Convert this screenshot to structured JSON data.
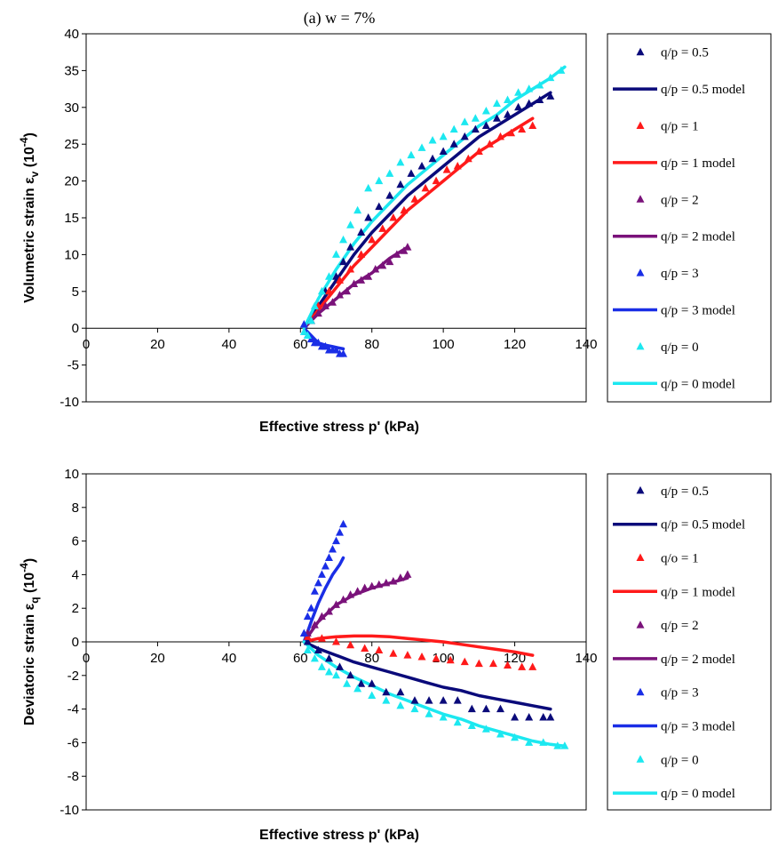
{
  "figure_title": "(a) w = 7%",
  "colors": {
    "navy": "#0a0a7a",
    "red": "#ff1a1a",
    "purple": "#7a127a",
    "blue": "#1a2ee6",
    "cyan": "#1ce8f0"
  },
  "chart_data": [
    {
      "type": "scatter",
      "xlabel": "Effective stress p' (kPa)",
      "ylabel": "Volumetric strain",
      "ylabel_symbol": "ε",
      "ylabel_sub": "v",
      "ylabel_unit_pre": " (10",
      "ylabel_unit_exp": "-4",
      "ylabel_unit_post": ")",
      "xlim": [
        0,
        140
      ],
      "ylim": [
        -10,
        40
      ],
      "xticks": [
        0,
        20,
        40,
        60,
        80,
        100,
        120,
        140
      ],
      "yticks": [
        -10,
        -5,
        0,
        5,
        10,
        15,
        20,
        25,
        30,
        35,
        40
      ],
      "legend_position": "right",
      "legend": [
        "q/p = 0.5",
        "q/p = 0.5 model",
        "q/p = 1",
        "q/p = 1 model",
        "q/p = 2",
        "q/p = 2 model",
        "q/p = 3",
        "q/p = 3 model",
        "q/p = 0",
        "q/p = 0 model"
      ],
      "series": [
        {
          "name": "q/p = 0.5",
          "kind": "marker",
          "color": "navy",
          "x": [
            63,
            65,
            67,
            70,
            72,
            74,
            77,
            79,
            82,
            85,
            88,
            91,
            94,
            97,
            100,
            103,
            106,
            109,
            112,
            115,
            118,
            121,
            124,
            127,
            130
          ],
          "y": [
            1,
            3,
            5,
            7,
            9,
            11,
            13,
            15,
            16.5,
            18,
            19.5,
            21,
            22,
            23,
            24,
            25,
            26,
            27,
            27.5,
            28.5,
            29,
            30,
            30.5,
            31,
            31.5
          ]
        },
        {
          "name": "q/p = 0.5 model",
          "kind": "line",
          "color": "navy",
          "x": [
            61,
            65,
            70,
            75,
            80,
            85,
            90,
            95,
            100,
            105,
            110,
            115,
            120,
            125,
            130
          ],
          "y": [
            0,
            3,
            6.5,
            10,
            13,
            15.5,
            18,
            20,
            22,
            24,
            26,
            27.5,
            29,
            30.5,
            32
          ]
        },
        {
          "name": "q/p = 1",
          "kind": "marker",
          "color": "red",
          "x": [
            63,
            65,
            68,
            71,
            74,
            77,
            80,
            83,
            86,
            89,
            92,
            95,
            98,
            101,
            104,
            107,
            110,
            113,
            116,
            119,
            122,
            125
          ],
          "y": [
            1,
            3,
            5,
            6.5,
            8,
            10,
            12,
            13.5,
            15,
            16,
            17.5,
            19,
            20,
            21.5,
            22,
            23,
            24,
            25,
            26,
            26.5,
            27,
            27.5
          ]
        },
        {
          "name": "q/p = 1 model",
          "kind": "line",
          "color": "red",
          "x": [
            61,
            65,
            70,
            75,
            80,
            85,
            90,
            95,
            100,
            105,
            110,
            115,
            120,
            125
          ],
          "y": [
            0,
            2.5,
            5.5,
            8.5,
            11,
            13.5,
            16,
            18,
            20,
            22,
            24,
            25.5,
            27,
            28.5
          ]
        },
        {
          "name": "q/p = 2",
          "kind": "marker",
          "color": "purple",
          "x": [
            63,
            65,
            67,
            69,
            71,
            73,
            75,
            77,
            79,
            81,
            83,
            85,
            87,
            89,
            90
          ],
          "y": [
            1,
            2,
            3,
            3.5,
            4.5,
            5,
            6,
            6.5,
            7,
            8,
            8.5,
            9,
            10,
            10.5,
            11
          ]
        },
        {
          "name": "q/p = 2 model",
          "kind": "line",
          "color": "purple",
          "x": [
            61,
            65,
            70,
            75,
            80,
            85,
            90
          ],
          "y": [
            0,
            2,
            4,
            6,
            7.5,
            9.5,
            11
          ]
        },
        {
          "name": "q/p = 3",
          "kind": "marker",
          "color": "blue",
          "x": [
            61,
            61.5,
            62,
            63,
            64,
            65,
            66,
            67,
            68,
            69,
            70,
            71,
            72
          ],
          "y": [
            0.5,
            -0.5,
            -1,
            -1.5,
            -2,
            -2,
            -2.5,
            -2.5,
            -3,
            -3,
            -3,
            -3.5,
            -3.5
          ]
        },
        {
          "name": "q/p = 3 model",
          "kind": "line",
          "color": "blue",
          "x": [
            61,
            63,
            65,
            67,
            69,
            71,
            72
          ],
          "y": [
            0,
            -1,
            -2,
            -2.3,
            -2.5,
            -2.7,
            -2.8
          ]
        },
        {
          "name": "q/p = 0",
          "kind": "marker",
          "color": "cyan",
          "x": [
            61,
            62,
            63,
            64,
            66,
            68,
            70,
            72,
            74,
            76,
            79,
            82,
            85,
            88,
            91,
            94,
            97,
            100,
            103,
            106,
            109,
            112,
            115,
            118,
            121,
            124,
            127,
            130,
            133
          ],
          "y": [
            -0.5,
            -1,
            1,
            3,
            5,
            7,
            10,
            12,
            14,
            16,
            19,
            20,
            21,
            22.5,
            23.5,
            24.5,
            25.5,
            26,
            27,
            28,
            28.5,
            29.5,
            30.5,
            31,
            32,
            32.5,
            33,
            34,
            35
          ]
        },
        {
          "name": "q/p = 0 model",
          "kind": "line",
          "color": "cyan",
          "x": [
            61,
            63,
            65,
            70,
            75,
            80,
            85,
            90,
            95,
            100,
            105,
            110,
            115,
            120,
            125,
            130,
            134
          ],
          "y": [
            0,
            2,
            4,
            8,
            11.5,
            14.5,
            17,
            19.5,
            21.5,
            23.5,
            25.5,
            27.5,
            29,
            31,
            32.5,
            34,
            35.5
          ]
        }
      ]
    },
    {
      "type": "scatter",
      "xlabel": "Effective stress p' (kPa)",
      "ylabel": "Deviatoric strain",
      "ylabel_symbol": "ε",
      "ylabel_sub": "q",
      "ylabel_unit_pre": " (10",
      "ylabel_unit_exp": "-4",
      "ylabel_unit_post": ")",
      "xlim": [
        0,
        140
      ],
      "ylim": [
        -10,
        10
      ],
      "xticks": [
        0,
        20,
        40,
        60,
        80,
        100,
        120,
        140
      ],
      "yticks": [
        -10,
        -8,
        -6,
        -4,
        -2,
        0,
        2,
        4,
        6,
        8,
        10
      ],
      "legend_position": "right",
      "legend": [
        "q/p = 0.5",
        "q/p = 0.5 model",
        "q/o = 1",
        "q/p = 1 model",
        "q/p = 2",
        "q/p = 2 model",
        "q/p = 3",
        "q/p = 3 model",
        "q/p = 0",
        "q/p = 0 model"
      ],
      "series": [
        {
          "name": "q/p = 0.5",
          "kind": "marker",
          "color": "navy",
          "x": [
            62,
            65,
            68,
            71,
            74,
            77,
            80,
            84,
            88,
            92,
            96,
            100,
            104,
            108,
            112,
            116,
            120,
            124,
            128,
            130
          ],
          "y": [
            0,
            -0.5,
            -1,
            -1.5,
            -2,
            -2.5,
            -2.5,
            -3,
            -3,
            -3.5,
            -3.5,
            -3.5,
            -3.5,
            -4,
            -4,
            -4,
            -4.5,
            -4.5,
            -4.5,
            -4.5
          ]
        },
        {
          "name": "q/p = 0.5 model",
          "kind": "line",
          "color": "navy",
          "x": [
            61,
            65,
            70,
            75,
            80,
            85,
            90,
            95,
            100,
            105,
            110,
            115,
            120,
            125,
            130
          ],
          "y": [
            0,
            -0.4,
            -0.8,
            -1.2,
            -1.5,
            -1.8,
            -2.1,
            -2.4,
            -2.7,
            -2.9,
            -3.2,
            -3.4,
            -3.6,
            -3.8,
            -4
          ]
        },
        {
          "name": "q/o = 1",
          "kind": "marker",
          "color": "red",
          "x": [
            62,
            66,
            70,
            74,
            78,
            82,
            86,
            90,
            94,
            98,
            102,
            106,
            110,
            114,
            118,
            122,
            125
          ],
          "y": [
            0.3,
            0.2,
            0,
            -0.2,
            -0.4,
            -0.5,
            -0.7,
            -0.8,
            -0.9,
            -1,
            -1.1,
            -1.2,
            -1.3,
            -1.3,
            -1.4,
            -1.5,
            -1.5
          ]
        },
        {
          "name": "q/p = 1 model",
          "kind": "line",
          "color": "red",
          "x": [
            61,
            65,
            70,
            75,
            80,
            85,
            90,
            95,
            100,
            105,
            110,
            115,
            120,
            125
          ],
          "y": [
            0,
            0.2,
            0.3,
            0.35,
            0.35,
            0.3,
            0.2,
            0.1,
            0,
            -0.15,
            -0.3,
            -0.45,
            -0.6,
            -0.8
          ]
        },
        {
          "name": "q/p = 2",
          "kind": "marker",
          "color": "purple",
          "x": [
            62,
            64,
            66,
            68,
            70,
            72,
            74,
            76,
            78,
            80,
            82,
            84,
            86,
            88,
            90
          ],
          "y": [
            0.5,
            1,
            1.5,
            1.8,
            2.2,
            2.5,
            2.8,
            3,
            3.2,
            3.3,
            3.4,
            3.5,
            3.6,
            3.8,
            4
          ]
        },
        {
          "name": "q/p = 2 model",
          "kind": "line",
          "color": "purple",
          "x": [
            61,
            65,
            70,
            75,
            80,
            85,
            90
          ],
          "y": [
            0,
            1.2,
            2.2,
            2.8,
            3.2,
            3.5,
            3.8
          ]
        },
        {
          "name": "q/p = 3",
          "kind": "marker",
          "color": "blue",
          "x": [
            61,
            62,
            63,
            64,
            65,
            66,
            67,
            68,
            69,
            70,
            71,
            72
          ],
          "y": [
            0.5,
            1.5,
            2,
            3,
            3.5,
            4,
            4.5,
            5,
            5.5,
            6,
            6.5,
            7
          ]
        },
        {
          "name": "q/p = 3 model",
          "kind": "line",
          "color": "blue",
          "x": [
            61,
            63,
            65,
            67,
            69,
            71,
            72
          ],
          "y": [
            0,
            1.2,
            2.3,
            3.2,
            4,
            4.6,
            5
          ]
        },
        {
          "name": "q/p = 0",
          "kind": "marker",
          "color": "cyan",
          "x": [
            62,
            64,
            66,
            68,
            70,
            73,
            76,
            80,
            84,
            88,
            92,
            96,
            100,
            104,
            108,
            112,
            116,
            120,
            124,
            128,
            132,
            134
          ],
          "y": [
            -0.5,
            -1,
            -1.5,
            -1.8,
            -2,
            -2.5,
            -2.8,
            -3.2,
            -3.5,
            -3.8,
            -4,
            -4.3,
            -4.5,
            -4.8,
            -5,
            -5.2,
            -5.5,
            -5.7,
            -6,
            -6,
            -6.2,
            -6.2
          ]
        },
        {
          "name": "q/p = 0 model",
          "kind": "line",
          "color": "cyan",
          "x": [
            61,
            65,
            70,
            75,
            80,
            85,
            90,
            95,
            100,
            105,
            110,
            115,
            120,
            125,
            130,
            134
          ],
          "y": [
            0,
            -0.8,
            -1.5,
            -2.1,
            -2.6,
            -3.1,
            -3.5,
            -3.9,
            -4.3,
            -4.6,
            -5,
            -5.3,
            -5.6,
            -5.9,
            -6.1,
            -6.2
          ]
        }
      ]
    }
  ]
}
